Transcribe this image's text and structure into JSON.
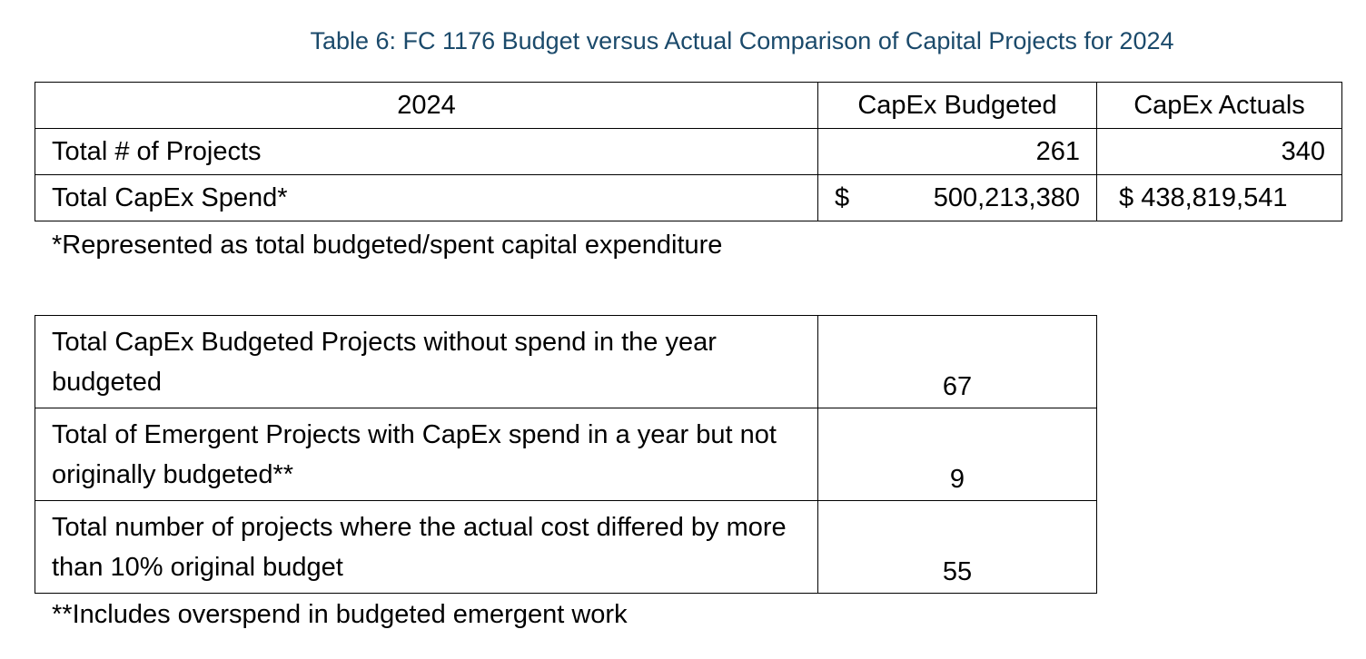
{
  "header": {
    "title": "Table 6: FC 1176 Budget versus Actual Comparison of Capital Projects for 2024"
  },
  "table": {
    "header": [
      "2024",
      "CapEx Budgeted",
      "CapEx Actuals"
    ],
    "rows": [
      [
        "Total # of Projects",
        "261",
        "340"
      ],
      [
        "Total CapEx Spend*",
        {
          "currency": "$",
          "amount": "500,213,380"
        },
        {
          "currency": "$",
          "amount": "438,819,541"
        }
      ]
    ],
    "footnote": "*Represented as total budgeted/spent capital expenditure"
  },
  "table2": {
    "rows": [
      [
        "Total CapEx Budgeted Projects without spend in the year budgeted",
        "67"
      ],
      [
        "Total of Emergent Projects with CapEx spend in a year but not originally budgeted**",
        "9"
      ],
      [
        "Total number of projects where the actual cost differed by more than 10% original budget",
        "55"
      ]
    ],
    "footnote": "**Includes overspend in budgeted emergent work"
  }
}
